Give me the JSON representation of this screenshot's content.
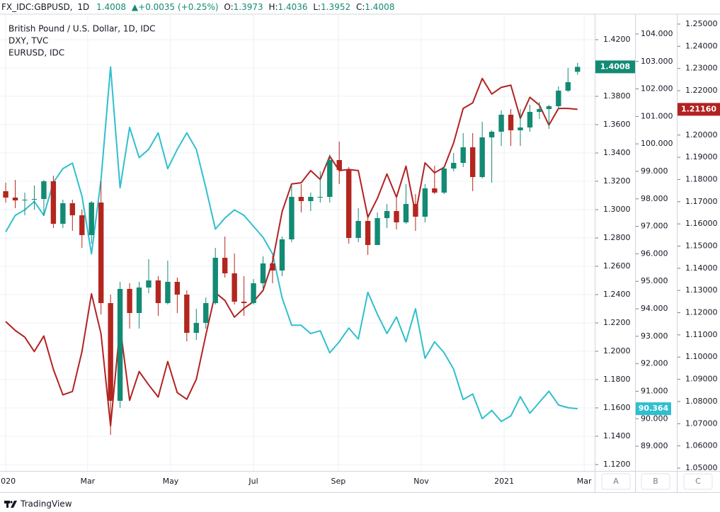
{
  "header": {
    "symbol": "FX_IDC:GBPUSD,",
    "interval": "1D",
    "last": "1.4008",
    "change": "▲+0.0035 (+0.25%)",
    "ohlc": [
      {
        "label": "O:",
        "value": "1.3973"
      },
      {
        "label": "H:",
        "value": "1.4036"
      },
      {
        "label": "L:",
        "value": "1.3952"
      },
      {
        "label": "C:",
        "value": "1.4008"
      }
    ]
  },
  "scale_buttons": [
    "A",
    "B",
    "C"
  ],
  "footer": {
    "brand": "TradingView"
  },
  "chart_data": {
    "type": "candlestick",
    "grid": true,
    "x": [
      0,
      1,
      2,
      3,
      4,
      5,
      6,
      7,
      8,
      9,
      10,
      11,
      12,
      13,
      14,
      15,
      16,
      17,
      18,
      19,
      20,
      21,
      22,
      23,
      24,
      25,
      26,
      27,
      28,
      29,
      30,
      31,
      32,
      33,
      34,
      35,
      36,
      37,
      38,
      39,
      40,
      41,
      42,
      43,
      44,
      45,
      46,
      47,
      48,
      49,
      50,
      51,
      52,
      53,
      54,
      55,
      56,
      57,
      58,
      59,
      60
    ],
    "xlim": [
      -0.6,
      61.8
    ],
    "xticks": [
      {
        "value": 0,
        "label": "2020"
      },
      {
        "value": 8.6,
        "label": "Mar"
      },
      {
        "value": 17.3,
        "label": "May"
      },
      {
        "value": 26,
        "label": "Jul"
      },
      {
        "value": 34.9,
        "label": "Sep"
      },
      {
        "value": 43.6,
        "label": "Nov"
      },
      {
        "value": 52.3,
        "label": "2021"
      },
      {
        "value": 60.7,
        "label": "Mar"
      }
    ],
    "ylim": [
      1.1155,
      1.438
    ],
    "yticks": [
      {
        "value": 1.12,
        "label": "1.1200"
      },
      {
        "value": 1.14,
        "label": "1.1400"
      },
      {
        "value": 1.16,
        "label": "1.1600"
      },
      {
        "value": 1.18,
        "label": "1.1800"
      },
      {
        "value": 1.2,
        "label": "1.2000"
      },
      {
        "value": 1.22,
        "label": "1.2200"
      },
      {
        "value": 1.24,
        "label": "1.2400"
      },
      {
        "value": 1.26,
        "label": "1.2600"
      },
      {
        "value": 1.28,
        "label": "1.2800"
      },
      {
        "value": 1.3,
        "label": "1.3000"
      },
      {
        "value": 1.32,
        "label": "1.3200"
      },
      {
        "value": 1.34,
        "label": "1.3400"
      },
      {
        "value": 1.36,
        "label": "1.3600"
      },
      {
        "value": 1.38,
        "label": "1.3800"
      },
      {
        "value": 1.4,
        "label": "1.4000"
      },
      {
        "value": 1.42,
        "label": "1.4200"
      }
    ],
    "y2lim": [
      88.1,
      104.72
    ],
    "y2ticks": [
      {
        "value": 89,
        "label": "89.000"
      },
      {
        "value": 90,
        "label": "90.000"
      },
      {
        "value": 91,
        "label": "91.000"
      },
      {
        "value": 92,
        "label": "92.000"
      },
      {
        "value": 93,
        "label": "93.000"
      },
      {
        "value": 94,
        "label": "94.000"
      },
      {
        "value": 95,
        "label": "95.000"
      },
      {
        "value": 96,
        "label": "96.000"
      },
      {
        "value": 97,
        "label": "97.000"
      },
      {
        "value": 98,
        "label": "98.000"
      },
      {
        "value": 99,
        "label": "99.000"
      },
      {
        "value": 100,
        "label": "100.000"
      },
      {
        "value": 101,
        "label": "101.000"
      },
      {
        "value": 102,
        "label": "102.000"
      },
      {
        "value": 103,
        "label": "103.000"
      },
      {
        "value": 104,
        "label": "104.000"
      }
    ],
    "y3lim": [
      1.04872,
      1.25447
    ],
    "y3ticks": [
      {
        "value": 1.05,
        "label": "1.05000"
      },
      {
        "value": 1.06,
        "label": "1.06000"
      },
      {
        "value": 1.07,
        "label": "1.07000"
      },
      {
        "value": 1.08,
        "label": "1.08000"
      },
      {
        "value": 1.09,
        "label": "1.09000"
      },
      {
        "value": 1.1,
        "label": "1.10000"
      },
      {
        "value": 1.11,
        "label": "1.11000"
      },
      {
        "value": 1.12,
        "label": "1.12000"
      },
      {
        "value": 1.13,
        "label": "1.13000"
      },
      {
        "value": 1.14,
        "label": "1.14000"
      },
      {
        "value": 1.15,
        "label": "1.15000"
      },
      {
        "value": 1.16,
        "label": "1.16000"
      },
      {
        "value": 1.17,
        "label": "1.17000"
      },
      {
        "value": 1.18,
        "label": "1.18000"
      },
      {
        "value": 1.19,
        "label": "1.19000"
      },
      {
        "value": 1.2,
        "label": "1.20000"
      },
      {
        "value": 1.21,
        "label": "1.21000"
      },
      {
        "value": 1.22,
        "label": "1.22000"
      },
      {
        "value": 1.23,
        "label": "1.23000"
      },
      {
        "value": 1.24,
        "label": "1.24000"
      },
      {
        "value": 1.25,
        "label": "1.25000"
      }
    ],
    "series": [
      {
        "name": "British Pound / U.S. Dollar, 1D, IDC",
        "type": "candlestick",
        "axis": "y",
        "up_color": "#138a74",
        "down_color": "#b3261e",
        "last_label": "1.4008",
        "label_color": "#138a74",
        "open": [
          1.313,
          1.3085,
          1.3065,
          1.307,
          1.3075,
          1.32,
          1.29,
          1.3045,
          1.296,
          1.282,
          1.305,
          1.234,
          1.165,
          1.244,
          1.227,
          1.245,
          1.25,
          1.234,
          1.249,
          1.24,
          1.213,
          1.22,
          1.234,
          1.266,
          1.255,
          1.235,
          1.234,
          1.248,
          1.262,
          1.257,
          1.279,
          1.309,
          1.306,
          1.309,
          1.309,
          1.335,
          1.328,
          1.28,
          1.292,
          1.275,
          1.294,
          1.299,
          1.291,
          1.304,
          1.295,
          1.315,
          1.312,
          1.329,
          1.333,
          1.344,
          1.323,
          1.351,
          1.355,
          1.367,
          1.356,
          1.358,
          1.369,
          1.371,
          1.373,
          1.384,
          1.3973
        ],
        "high": [
          1.319,
          1.321,
          1.312,
          1.317,
          1.321,
          1.324,
          1.307,
          1.307,
          1.3,
          1.306,
          1.32,
          1.24,
          1.249,
          1.248,
          1.249,
          1.265,
          1.253,
          1.264,
          1.252,
          1.243,
          1.23,
          1.238,
          1.273,
          1.281,
          1.269,
          1.253,
          1.251,
          1.267,
          1.267,
          1.281,
          1.317,
          1.318,
          1.312,
          1.327,
          1.339,
          1.348,
          1.33,
          1.301,
          1.297,
          1.298,
          1.304,
          1.308,
          1.318,
          1.311,
          1.318,
          1.331,
          1.331,
          1.34,
          1.354,
          1.354,
          1.362,
          1.356,
          1.37,
          1.371,
          1.371,
          1.374,
          1.376,
          1.374,
          1.387,
          1.4,
          1.4036
        ],
        "low": [
          1.305,
          1.301,
          1.296,
          1.3,
          1.296,
          1.287,
          1.287,
          1.285,
          1.273,
          1.276,
          1.226,
          1.141,
          1.16,
          1.216,
          1.216,
          1.241,
          1.225,
          1.233,
          1.227,
          1.207,
          1.208,
          1.216,
          1.233,
          1.252,
          1.233,
          1.225,
          1.233,
          1.244,
          1.248,
          1.253,
          1.277,
          1.298,
          1.299,
          1.305,
          1.305,
          1.318,
          1.276,
          1.277,
          1.268,
          1.275,
          1.287,
          1.286,
          1.29,
          1.285,
          1.291,
          1.311,
          1.311,
          1.327,
          1.33,
          1.313,
          1.322,
          1.319,
          1.345,
          1.345,
          1.345,
          1.355,
          1.364,
          1.357,
          1.371,
          1.383,
          1.3952
        ],
        "close": [
          1.3085,
          1.3065,
          1.307,
          1.3075,
          1.32,
          1.29,
          1.3045,
          1.296,
          1.282,
          1.305,
          1.234,
          1.165,
          1.244,
          1.227,
          1.245,
          1.25,
          1.234,
          1.249,
          1.24,
          1.213,
          1.22,
          1.234,
          1.266,
          1.255,
          1.235,
          1.234,
          1.248,
          1.262,
          1.257,
          1.279,
          1.309,
          1.306,
          1.309,
          1.309,
          1.335,
          1.328,
          1.28,
          1.292,
          1.275,
          1.294,
          1.299,
          1.291,
          1.304,
          1.295,
          1.315,
          1.312,
          1.329,
          1.333,
          1.344,
          1.323,
          1.351,
          1.355,
          1.367,
          1.356,
          1.358,
          1.369,
          1.371,
          1.373,
          1.384,
          1.39,
          1.4008
        ]
      },
      {
        "name": "DXY, TVC",
        "type": "line",
        "axis": "y2",
        "color": "#2fbfcf",
        "last_label": "90.364",
        "values": [
          96.8,
          97.4,
          97.6,
          97.9,
          97.4,
          98.6,
          99.1,
          99.3,
          98.1,
          96.0,
          98.7,
          102.8,
          98.4,
          100.6,
          99.5,
          99.8,
          100.4,
          99.1,
          99.8,
          100.4,
          99.8,
          98.4,
          96.9,
          97.3,
          97.6,
          97.4,
          97.0,
          96.6,
          96.0,
          94.4,
          93.4,
          93.4,
          93.1,
          93.2,
          92.4,
          92.8,
          93.3,
          92.9,
          94.6,
          93.8,
          93.1,
          93.7,
          92.8,
          94.0,
          92.2,
          92.8,
          92.4,
          91.8,
          90.7,
          90.9,
          90.0,
          90.3,
          89.9,
          90.1,
          90.8,
          90.2,
          90.6,
          91.0,
          90.5,
          90.4,
          90.364
        ]
      },
      {
        "name": "EURUSD, IDC",
        "type": "line",
        "axis": "y3",
        "color": "#b22222",
        "last_label": "1.21160",
        "values": [
          1.116,
          1.112,
          1.109,
          1.1025,
          1.1095,
          1.0945,
          1.083,
          1.0845,
          1.1025,
          1.1285,
          1.1105,
          1.069,
          1.114,
          1.0805,
          1.0935,
          1.0875,
          1.082,
          1.098,
          1.084,
          1.081,
          1.09,
          1.11,
          1.129,
          1.1255,
          1.118,
          1.122,
          1.125,
          1.13,
          1.143,
          1.1655,
          1.178,
          1.1785,
          1.184,
          1.18,
          1.1905,
          1.184,
          1.1845,
          1.184,
          1.163,
          1.1715,
          1.1825,
          1.172,
          1.186,
          1.1645,
          1.1875,
          1.183,
          1.1855,
          1.1965,
          1.212,
          1.2145,
          1.2255,
          1.2185,
          1.2215,
          1.2225,
          1.2075,
          1.217,
          1.2135,
          1.2045,
          1.212,
          1.212,
          1.2116
        ]
      }
    ]
  }
}
